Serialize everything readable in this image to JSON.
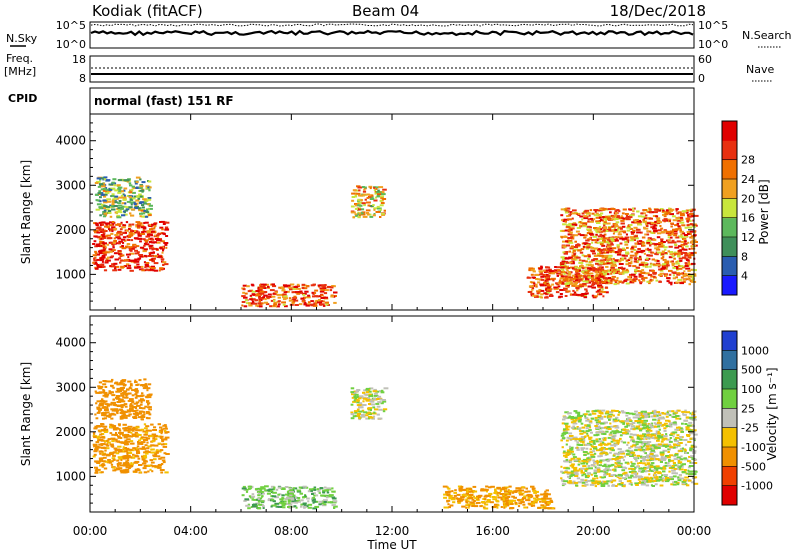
{
  "header": {
    "station": "Kodiak (fitACF)",
    "beam": "Beam 04",
    "date": "18/Dec/2018"
  },
  "noise_panel": {
    "left_label": "N.Sky",
    "right_label": "N.Search",
    "left_ticks": [
      "10^5",
      "10^0"
    ],
    "right_ticks": [
      "10^5",
      "10^0"
    ]
  },
  "freq_panel": {
    "left_label_line1": "Freq.",
    "left_label_line2": "[MHz]",
    "right_label": "Nave",
    "left_ticks": [
      "18",
      "8"
    ],
    "right_ticks": [
      "60",
      "0"
    ]
  },
  "cpid": {
    "label": "CPID",
    "value": "normal (fast) 151 RF"
  },
  "colors": {
    "power_scale": [
      "#1a1aff",
      "#2a5db0",
      "#3f8f5a",
      "#5cb85c",
      "#c8e63c",
      "#f0a020",
      "#f07000",
      "#e83010",
      "#e00000"
    ],
    "velocity_scale": [
      "#2040d0",
      "#3070a0",
      "#3c9a50",
      "#70d040",
      "#c0c0b8",
      "#f4c000",
      "#f09000",
      "#f04000",
      "#e00000"
    ]
  },
  "chart_data": [
    {
      "type": "heatmap",
      "ylabel": "Slant Range [km]",
      "xlim": [
        "00:00",
        "00:00"
      ],
      "ylim": [
        200,
        4600
      ],
      "y_ticks": [
        1000,
        2000,
        3000,
        4000
      ],
      "colorbar": {
        "label": "Power [dB]",
        "ticks": [
          4,
          8,
          12,
          16,
          20,
          24,
          28
        ]
      },
      "echo_regions": [
        {
          "time_start": "00:05",
          "time_end": "03:00",
          "range_start": 1100,
          "range_end": 2200,
          "power_db": 26
        },
        {
          "time_start": "00:10",
          "time_end": "02:20",
          "range_start": 2300,
          "range_end": 3200,
          "power_db": 14
        },
        {
          "time_start": "06:00",
          "time_end": "09:40",
          "range_start": 300,
          "range_end": 800,
          "power_db": 24
        },
        {
          "time_start": "10:20",
          "time_end": "11:40",
          "range_start": 2300,
          "range_end": 3000,
          "power_db": 18
        },
        {
          "time_start": "17:20",
          "time_end": "20:30",
          "range_start": 500,
          "range_end": 1200,
          "power_db": 24
        },
        {
          "time_start": "18:40",
          "time_end": "00:00",
          "range_start": 800,
          "range_end": 2500,
          "power_db": 22
        }
      ]
    },
    {
      "type": "heatmap",
      "ylabel": "Slant Range [km]",
      "xlabel": "Time UT",
      "x_ticks": [
        "00:00",
        "04:00",
        "08:00",
        "12:00",
        "16:00",
        "20:00",
        "00:00"
      ],
      "ylim": [
        200,
        4600
      ],
      "y_ticks": [
        1000,
        2000,
        3000,
        4000
      ],
      "colorbar": {
        "label": "Velocity [m s⁻¹]",
        "ticks": [
          1000,
          500,
          100,
          25,
          -25,
          -100,
          -500,
          -1000
        ]
      },
      "echo_regions": [
        {
          "time_start": "00:05",
          "time_end": "03:00",
          "range_start": 1100,
          "range_end": 2200,
          "velocity_ms": -150
        },
        {
          "time_start": "00:10",
          "time_end": "02:20",
          "range_start": 2300,
          "range_end": 3200,
          "velocity_ms": -200
        },
        {
          "time_start": "06:00",
          "time_end": "09:40",
          "range_start": 300,
          "range_end": 800,
          "velocity_ms": 60
        },
        {
          "time_start": "10:20",
          "time_end": "11:40",
          "range_start": 2300,
          "range_end": 3000,
          "velocity_ms": 0
        },
        {
          "time_start": "14:00",
          "time_end": "18:20",
          "range_start": 300,
          "range_end": 800,
          "velocity_ms": -120
        },
        {
          "time_start": "18:40",
          "time_end": "00:00",
          "range_start": 800,
          "range_end": 2500,
          "velocity_ms": 0
        }
      ]
    }
  ]
}
